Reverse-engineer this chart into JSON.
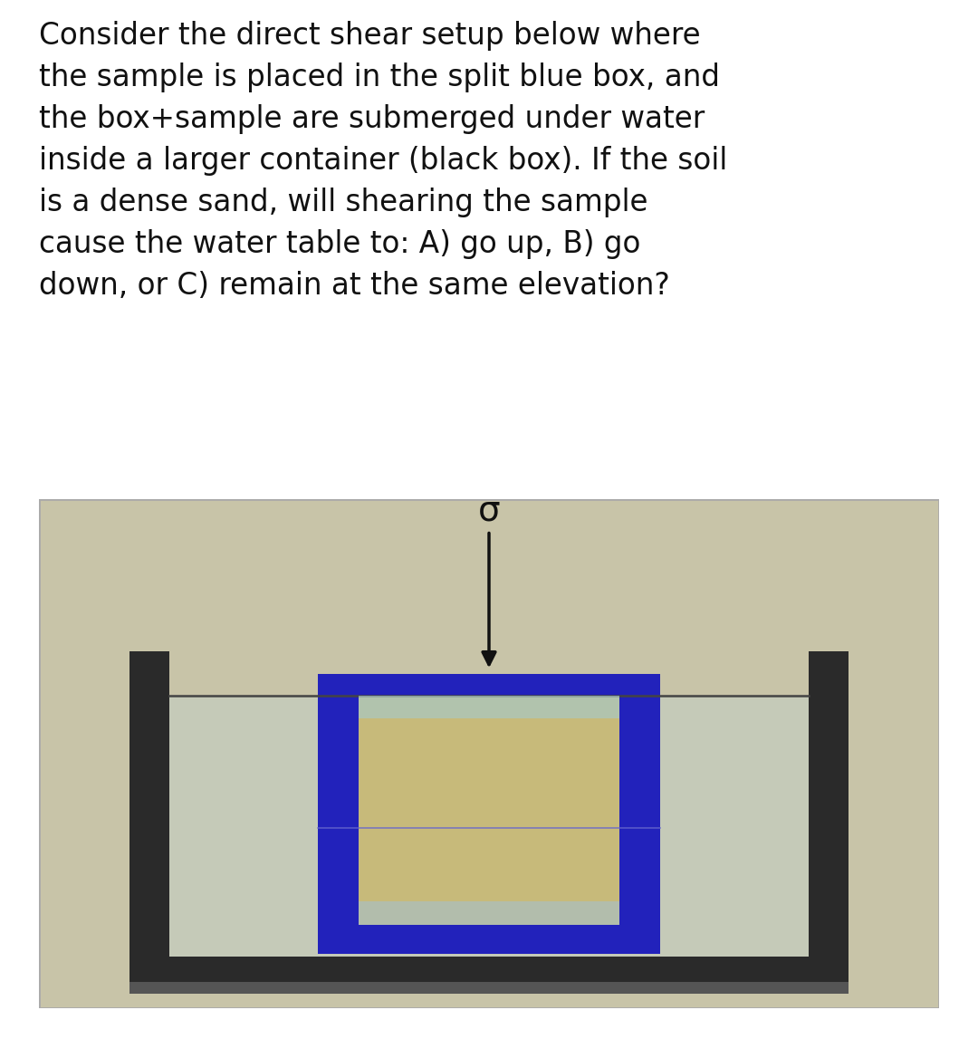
{
  "title_text": "Consider the direct shear setup below where\nthe sample is placed in the split blue box, and\nthe box+sample are submerged under water\ninside a larger container (black box). If the soil\nis a dense sand, will shearing the sample\ncause the water table to: A) go up, B) go\ndown, or C) remain at the same elevation?",
  "title_fontsize": 23.5,
  "bg_color": "#ffffff",
  "diagram_bg": "#c8c4a8",
  "water_color": "#b0c8d0",
  "black_box_color": "#2a2a2a",
  "blue_box_color": "#2222bb",
  "soil_color": "#c8b870",
  "soil_border_color": "#a09050",
  "water_line_color": "#444444",
  "sigma_label": "σ",
  "arrow_color": "#111111",
  "diagram_edge_color": "#aaaaaa"
}
